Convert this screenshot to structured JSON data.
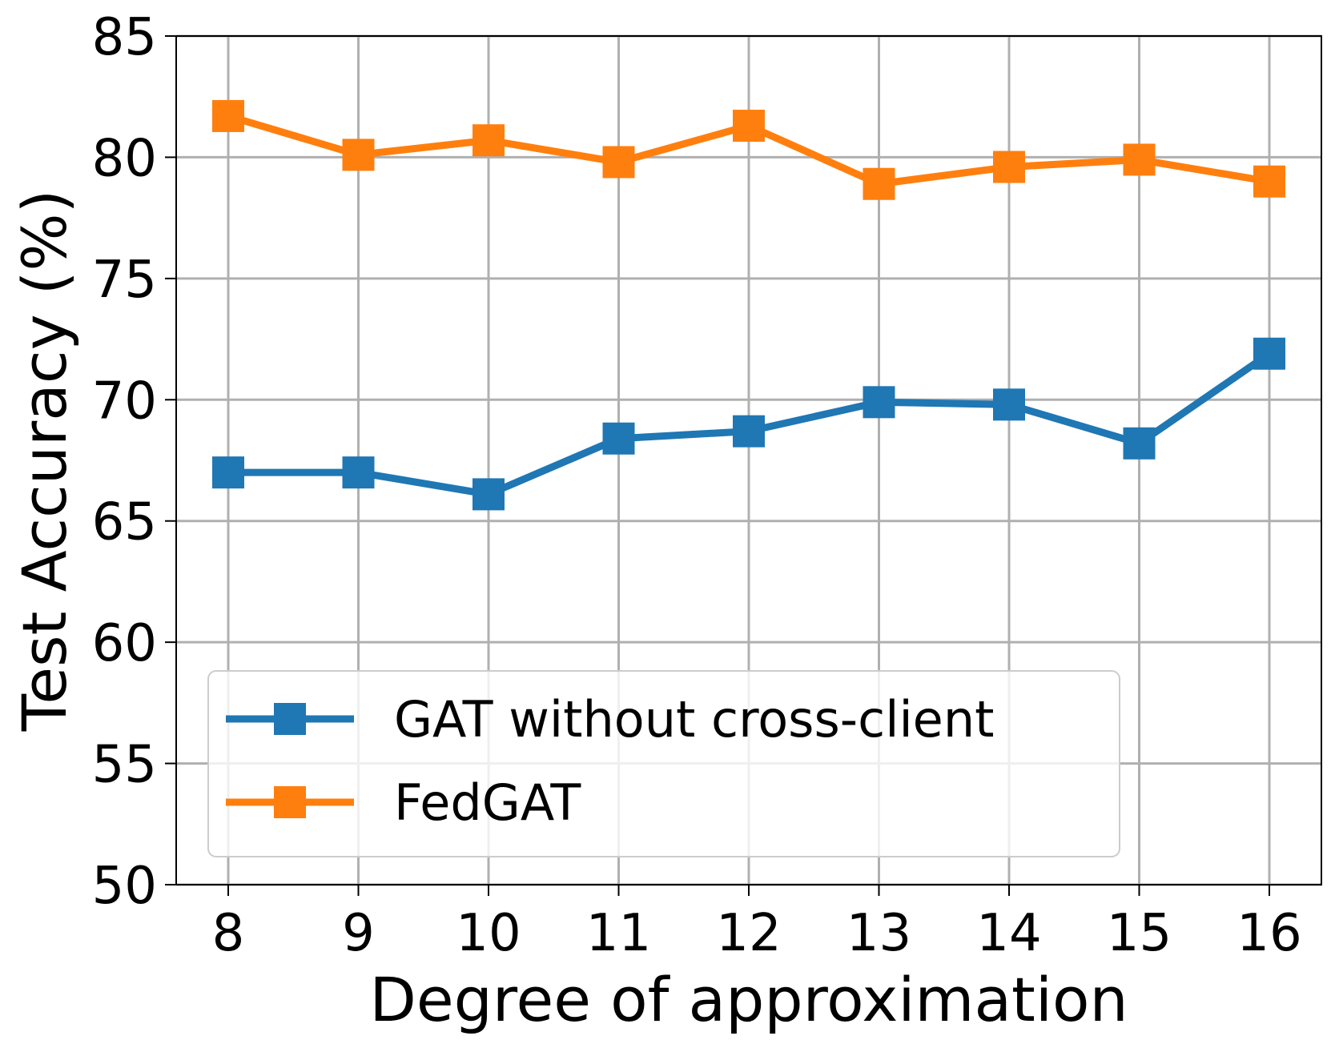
{
  "chart_data": {
    "type": "line",
    "title": "",
    "xlabel": "Degree of approximation",
    "ylabel": "Test Accuracy (%)",
    "x": [
      8,
      9,
      10,
      11,
      12,
      13,
      14,
      15,
      16
    ],
    "xticks": [
      "8",
      "9",
      "10",
      "11",
      "12",
      "13",
      "14",
      "15",
      "16"
    ],
    "ylim": [
      50,
      85
    ],
    "yticks": [
      "50",
      "55",
      "60",
      "65",
      "70",
      "75",
      "80",
      "85"
    ],
    "grid": true,
    "legend_position": "lower-left",
    "series": [
      {
        "name": "GAT without cross-client",
        "color": "#1f77b4",
        "marker": "square",
        "values": [
          67.0,
          67.0,
          66.1,
          68.4,
          68.7,
          69.9,
          69.8,
          68.2,
          71.9
        ]
      },
      {
        "name": "FedGAT",
        "color": "#ff7f0e",
        "marker": "square",
        "values": [
          81.7,
          80.1,
          80.7,
          79.8,
          81.3,
          78.9,
          79.6,
          79.9,
          79.0
        ]
      }
    ]
  }
}
